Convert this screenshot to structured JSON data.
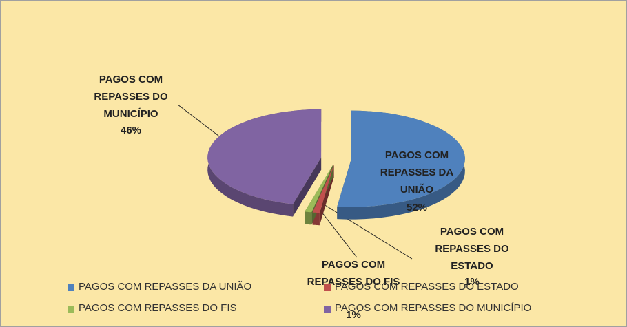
{
  "chart_data": {
    "type": "pie",
    "categories": [
      "PAGOS COM REPASSES DA UNIÃO",
      "PAGOS COM REPASSES DO ESTADO",
      "PAGOS COM REPASSES DO FIS",
      "PAGOS COM REPASSES DO MUNICÍPIO"
    ],
    "values": [
      52,
      1,
      1,
      46
    ],
    "value_labels": [
      "52%",
      "1%",
      "1%",
      "46%"
    ],
    "colors": [
      "#4f81bd",
      "#c0504d",
      "#9bbb59",
      "#8064a2"
    ],
    "legend": "bottom"
  }
}
